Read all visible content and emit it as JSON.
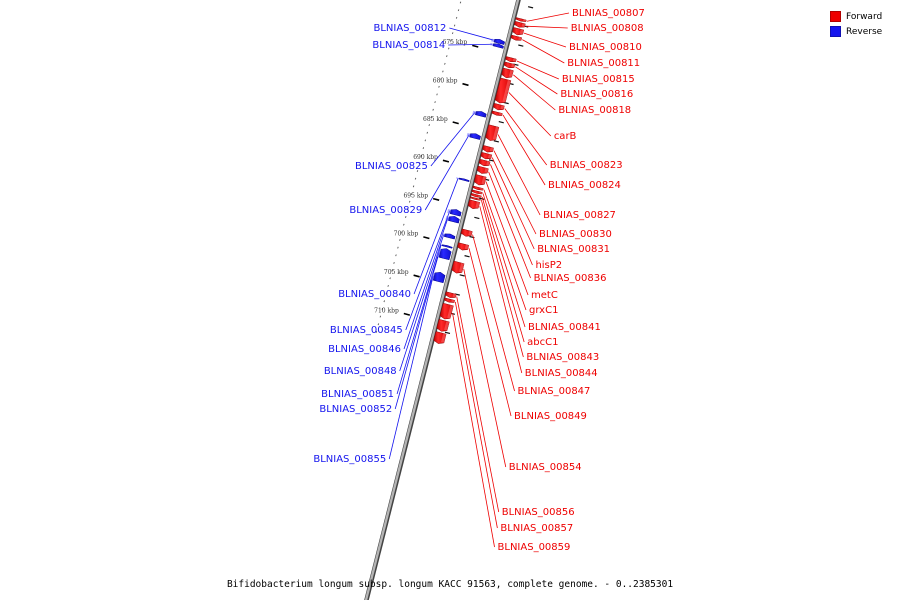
{
  "colors": {
    "forward": "#ee0000",
    "reverse": "#1414ee",
    "backbone": "#7a7a7a"
  },
  "legend": [
    {
      "label": "Forward",
      "color": "#ee0000"
    },
    {
      "label": "Reverse",
      "color": "#1414ee"
    }
  ],
  "caption": "Bifidobacterium longum subsp. longum KACC 91563, complete genome. - 0..2385301",
  "kbp_marks": [
    {
      "pos_kbp": 675,
      "label": "675 kbp"
    },
    {
      "pos_kbp": 680,
      "label": "680 kbp"
    },
    {
      "pos_kbp": 685,
      "label": "685 kbp"
    },
    {
      "pos_kbp": 690,
      "label": "690 kbp"
    },
    {
      "pos_kbp": 695,
      "label": "695 kbp"
    },
    {
      "pos_kbp": 700,
      "label": "700 kbp"
    },
    {
      "pos_kbp": 705,
      "label": "705 kbp"
    },
    {
      "pos_kbp": 710,
      "label": "710 kbp"
    }
  ],
  "forward_genes": [
    {
      "name": "BLNIAS_00807",
      "start_kbp": 670.2,
      "end_kbp": 670.5
    },
    {
      "name": "BLNIAS_00808",
      "start_kbp": 670.7,
      "end_kbp": 671.3
    },
    {
      "name": "BLNIAS_00810",
      "start_kbp": 671.5,
      "end_kbp": 672.3
    },
    {
      "name": "BLNIAS_00811",
      "start_kbp": 672.5,
      "end_kbp": 673.0
    },
    {
      "name": "BLNIAS_00815",
      "start_kbp": 675.3,
      "end_kbp": 675.8
    },
    {
      "name": "BLNIAS_00816",
      "start_kbp": 676.0,
      "end_kbp": 676.6
    },
    {
      "name": "BLNIAS_00818",
      "start_kbp": 676.8,
      "end_kbp": 677.9
    },
    {
      "name": "carB",
      "start_kbp": 678.1,
      "end_kbp": 681.2
    },
    {
      "name": "BLNIAS_00823",
      "start_kbp": 681.4,
      "end_kbp": 682.1
    },
    {
      "name": "BLNIAS_00824",
      "start_kbp": 682.4,
      "end_kbp": 682.8
    },
    {
      "name": "BLNIAS_00827",
      "start_kbp": 684.2,
      "end_kbp": 686.1
    },
    {
      "name": "BLNIAS_00830",
      "start_kbp": 686.9,
      "end_kbp": 687.6
    },
    {
      "name": "BLNIAS_00831",
      "start_kbp": 687.8,
      "end_kbp": 688.5
    },
    {
      "name": "hisP2",
      "start_kbp": 688.7,
      "end_kbp": 689.4
    },
    {
      "name": "BLNIAS_00836",
      "start_kbp": 689.6,
      "end_kbp": 690.4
    },
    {
      "name": "metC",
      "start_kbp": 690.7,
      "end_kbp": 691.9
    },
    {
      "name": "grxC1",
      "start_kbp": 692.2,
      "end_kbp": 692.5
    },
    {
      "name": "BLNIAS_00841",
      "start_kbp": 692.7,
      "end_kbp": 693.0
    },
    {
      "name": "abcC1",
      "start_kbp": 693.15,
      "end_kbp": 693.45
    },
    {
      "name": "BLNIAS_00843",
      "start_kbp": 693.6,
      "end_kbp": 693.8
    },
    {
      "name": "BLNIAS_00844",
      "start_kbp": 694.0,
      "end_kbp": 695.0
    },
    {
      "name": "BLNIAS_00847",
      "start_kbp": 697.8,
      "end_kbp": 698.6
    },
    {
      "name": "BLNIAS_00849",
      "start_kbp": 699.6,
      "end_kbp": 700.4
    },
    {
      "name": "BLNIAS_00854",
      "start_kbp": 702.0,
      "end_kbp": 703.4
    },
    {
      "name": "BLNIAS_00856",
      "start_kbp": 706.0,
      "end_kbp": 706.6
    },
    {
      "name": "BLNIAS_00857",
      "start_kbp": 706.8,
      "end_kbp": 707.2
    },
    {
      "name": "BLNIAS_00859",
      "start_kbp": 707.5,
      "end_kbp": 709.4
    },
    {
      "start_kbp": 709.6,
      "end_kbp": 711.0
    },
    {
      "start_kbp": 711.2,
      "end_kbp": 712.6
    }
  ],
  "reverse_genes": [
    {
      "name": "BLNIAS_00812",
      "start_kbp": 673.4,
      "end_kbp": 673.9
    },
    {
      "name": "BLNIAS_00814",
      "start_kbp": 674.0,
      "end_kbp": 674.4
    },
    {
      "name": "BLNIAS_00825",
      "start_kbp": 682.8,
      "end_kbp": 683.4
    },
    {
      "name": "BLNIAS_00829",
      "start_kbp": 685.7,
      "end_kbp": 686.3
    },
    {
      "name": "BLNIAS_00840",
      "start_kbp": 691.6,
      "end_kbp": 691.8
    },
    {
      "name": "BLNIAS_00845",
      "start_kbp": 695.6,
      "end_kbp": 696.3
    },
    {
      "name": "BLNIAS_00846",
      "start_kbp": 696.5,
      "end_kbp": 697.2
    },
    {
      "name": "BLNIAS_00848",
      "start_kbp": 698.8,
      "end_kbp": 699.3
    },
    {
      "name": "BLNIAS_00851",
      "start_kbp": 700.3,
      "end_kbp": 700.5
    },
    {
      "name": "BLNIAS_00852",
      "start_kbp": 700.7,
      "end_kbp": 702.0
    },
    {
      "name": "BLNIAS_00855",
      "start_kbp": 703.8,
      "end_kbp": 705.0
    }
  ]
}
